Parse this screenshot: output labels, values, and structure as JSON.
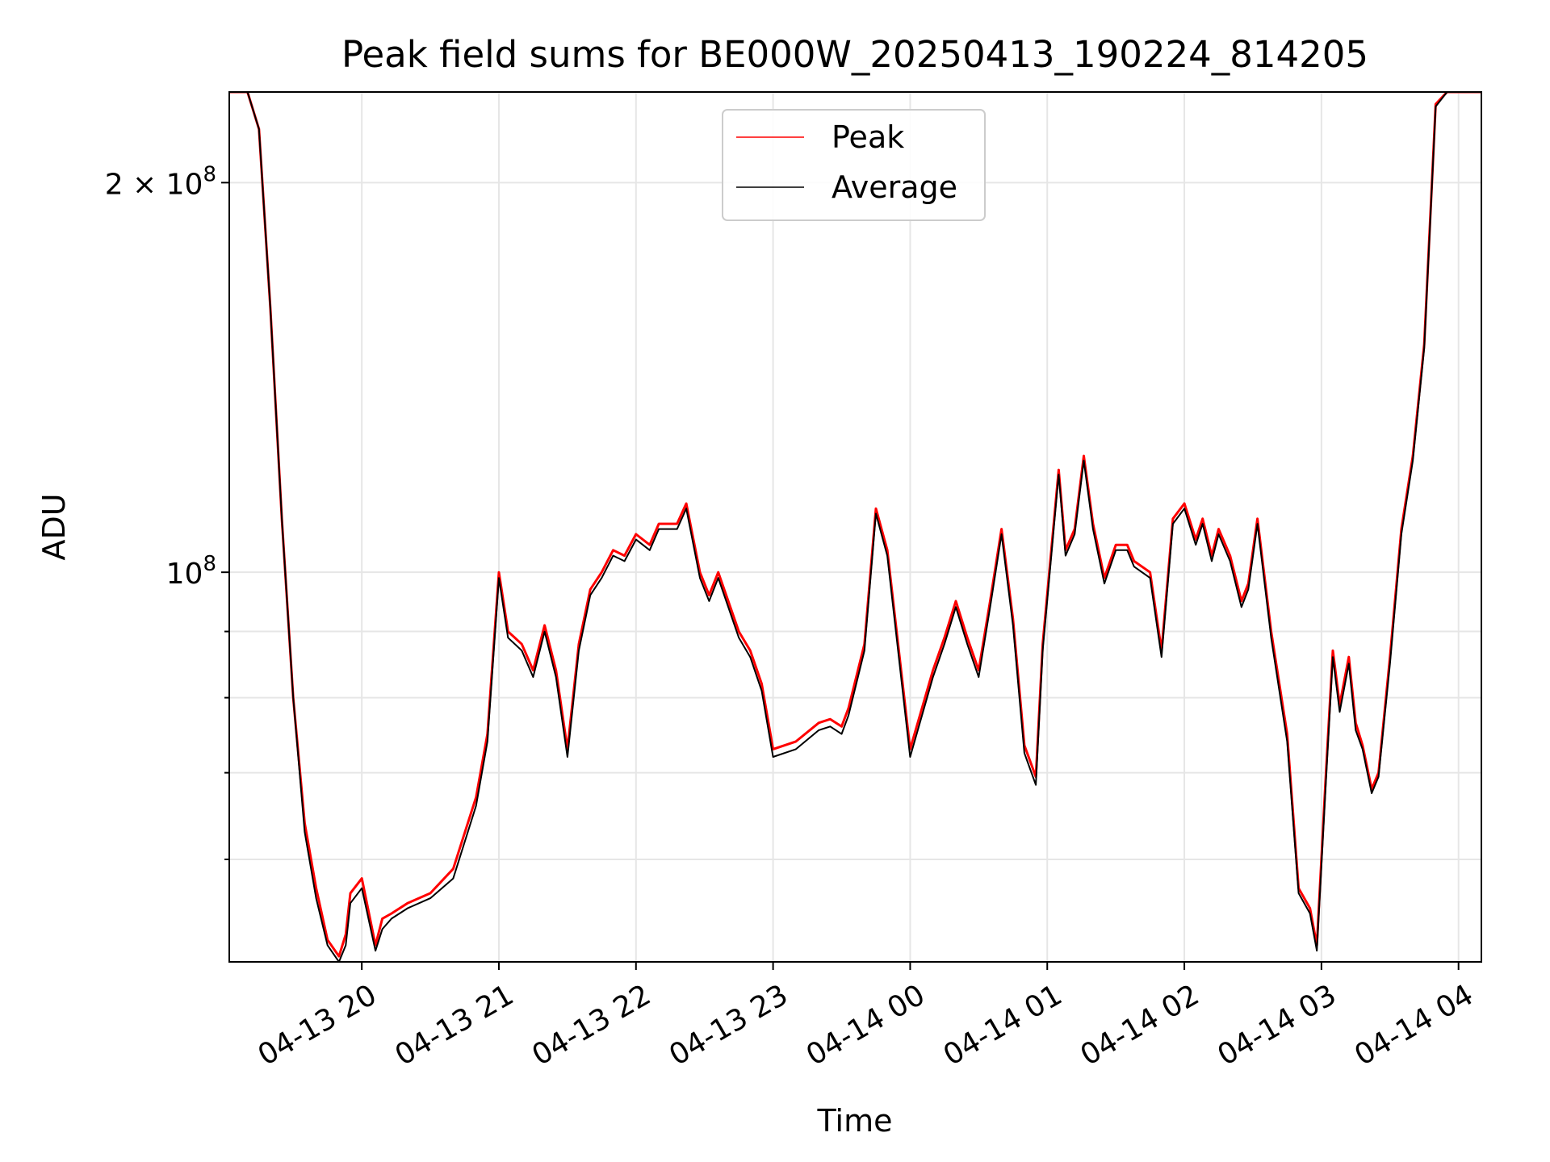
{
  "chart_data": {
    "type": "line",
    "title": "Peak field sums for BE000W_20250413_190224_814205",
    "xlabel": "Time",
    "ylabel": "ADU",
    "yscale": "log",
    "ylim": [
      50000000,
      235000000
    ],
    "xlim": [
      "04-13 19:02",
      "04-14 04:10"
    ],
    "grid": true,
    "legend_position": "upper center",
    "x_ticks": [
      {
        "at": "04-13 20:00",
        "label": "04-13 20"
      },
      {
        "at": "04-13 21:00",
        "label": "04-13 21"
      },
      {
        "at": "04-13 22:00",
        "label": "04-13 22"
      },
      {
        "at": "04-13 23:00",
        "label": "04-13 23"
      },
      {
        "at": "04-14 00:00",
        "label": "04-14 00"
      },
      {
        "at": "04-14 01:00",
        "label": "04-14 01"
      },
      {
        "at": "04-14 02:00",
        "label": "04-14 02"
      },
      {
        "at": "04-14 03:00",
        "label": "04-14 03"
      },
      {
        "at": "04-14 04:00",
        "label": "04-14 04"
      }
    ],
    "y_ticks": [
      {
        "value": 200000000,
        "label": "2 × 10",
        "exp": "8"
      },
      {
        "value": 100000000,
        "label": "10",
        "exp": "8"
      }
    ],
    "y_minor_ticks": [
      60000000,
      70000000,
      80000000,
      90000000
    ],
    "series": [
      {
        "name": "Peak",
        "color": "#ff0000",
        "x": [
          "04-13 19:02",
          "04-13 19:10",
          "04-13 19:15",
          "04-13 19:20",
          "04-13 19:25",
          "04-13 19:30",
          "04-13 19:35",
          "04-13 19:40",
          "04-13 19:45",
          "04-13 19:50",
          "04-13 19:53",
          "04-13 19:55",
          "04-13 20:00",
          "04-13 20:06",
          "04-13 20:09",
          "04-13 20:13",
          "04-13 20:20",
          "04-13 20:30",
          "04-13 20:40",
          "04-13 20:50",
          "04-13 20:55",
          "04-13 21:00",
          "04-13 21:04",
          "04-13 21:10",
          "04-13 21:15",
          "04-13 21:20",
          "04-13 21:25",
          "04-13 21:30",
          "04-13 21:35",
          "04-13 21:40",
          "04-13 21:45",
          "04-13 21:50",
          "04-13 21:55",
          "04-13 22:00",
          "04-13 22:06",
          "04-13 22:10",
          "04-13 22:18",
          "04-13 22:22",
          "04-13 22:28",
          "04-13 22:32",
          "04-13 22:36",
          "04-13 22:45",
          "04-13 22:50",
          "04-13 22:55",
          "04-13 23:00",
          "04-13 23:10",
          "04-13 23:20",
          "04-13 23:25",
          "04-13 23:30",
          "04-13 23:33",
          "04-13 23:40",
          "04-13 23:45",
          "04-13 23:50",
          "04-14 00:00",
          "04-14 00:10",
          "04-14 00:15",
          "04-14 00:20",
          "04-14 00:25",
          "04-14 00:30",
          "04-14 00:35",
          "04-14 00:40",
          "04-14 00:45",
          "04-14 00:50",
          "04-14 00:55",
          "04-14 00:58",
          "04-14 01:05",
          "04-14 01:08",
          "04-14 01:12",
          "04-14 01:16",
          "04-14 01:20",
          "04-14 01:25",
          "04-14 01:30",
          "04-14 01:35",
          "04-14 01:38",
          "04-14 01:45",
          "04-14 01:50",
          "04-14 01:55",
          "04-14 02:00",
          "04-14 02:05",
          "04-14 02:08",
          "04-14 02:12",
          "04-14 02:15",
          "04-14 02:20",
          "04-14 02:25",
          "04-14 02:28",
          "04-14 02:32",
          "04-14 02:38",
          "04-14 02:45",
          "04-14 02:50",
          "04-14 02:55",
          "04-14 02:58",
          "04-14 03:02",
          "04-14 03:05",
          "04-14 03:08",
          "04-14 03:12",
          "04-14 03:15",
          "04-14 03:18",
          "04-14 03:22",
          "04-14 03:25",
          "04-14 03:30",
          "04-14 03:35",
          "04-14 03:40",
          "04-14 03:45",
          "04-14 03:50",
          "04-14 03:55",
          "04-14 03:58",
          "04-14 04:00",
          "04-14 04:10"
        ],
        "values": [
          235000000,
          235000000,
          220000000,
          160000000,
          110000000,
          80000000,
          64000000,
          57000000,
          52000000,
          50500000,
          52500000,
          56500000,
          58000000,
          51500000,
          54000000,
          54500000,
          55500000,
          56500000,
          59000000,
          67000000,
          75000000,
          100000000,
          90000000,
          88000000,
          84000000,
          91000000,
          84000000,
          73000000,
          88000000,
          97000000,
          100000000,
          104000000,
          103000000,
          107000000,
          105000000,
          109000000,
          109000000,
          113000000,
          100000000,
          96000000,
          100000000,
          90000000,
          87000000,
          82000000,
          73000000,
          74000000,
          76500000,
          77000000,
          76000000,
          78500000,
          88000000,
          112000000,
          104000000,
          73000000,
          84000000,
          89000000,
          95000000,
          89000000,
          84000000,
          95000000,
          108000000,
          92000000,
          73500000,
          69500000,
          88000000,
          120000000,
          104000000,
          108000000,
          123000000,
          109000000,
          99000000,
          105000000,
          105000000,
          102000000,
          100000000,
          87000000,
          110000000,
          113000000,
          106000000,
          110000000,
          103000000,
          108000000,
          103000000,
          95000000,
          98000000,
          110000000,
          90000000,
          75000000,
          57000000,
          55000000,
          51500000,
          70000000,
          87000000,
          79000000,
          86000000,
          76500000,
          73500000,
          68000000,
          70000000,
          86000000,
          108000000,
          123000000,
          150000000,
          230000000,
          235000000,
          235000000,
          235000000,
          235000000
        ]
      },
      {
        "name": "Average",
        "color": "#000000",
        "x": [
          "04-13 19:02",
          "04-13 19:10",
          "04-13 19:15",
          "04-13 19:20",
          "04-13 19:25",
          "04-13 19:30",
          "04-13 19:35",
          "04-13 19:40",
          "04-13 19:45",
          "04-13 19:50",
          "04-13 19:53",
          "04-13 19:55",
          "04-13 20:00",
          "04-13 20:06",
          "04-13 20:09",
          "04-13 20:13",
          "04-13 20:20",
          "04-13 20:30",
          "04-13 20:40",
          "04-13 20:50",
          "04-13 20:55",
          "04-13 21:00",
          "04-13 21:04",
          "04-13 21:10",
          "04-13 21:15",
          "04-13 21:20",
          "04-13 21:25",
          "04-13 21:30",
          "04-13 21:35",
          "04-13 21:40",
          "04-13 21:45",
          "04-13 21:50",
          "04-13 21:55",
          "04-13 22:00",
          "04-13 22:06",
          "04-13 22:10",
          "04-13 22:18",
          "04-13 22:22",
          "04-13 22:28",
          "04-13 22:32",
          "04-13 22:36",
          "04-13 22:45",
          "04-13 22:50",
          "04-13 22:55",
          "04-13 23:00",
          "04-13 23:10",
          "04-13 23:20",
          "04-13 23:25",
          "04-13 23:30",
          "04-13 23:33",
          "04-13 23:40",
          "04-13 23:45",
          "04-13 23:50",
          "04-14 00:00",
          "04-14 00:10",
          "04-14 00:15",
          "04-14 00:20",
          "04-14 00:25",
          "04-14 00:30",
          "04-14 00:35",
          "04-14 00:40",
          "04-14 00:45",
          "04-14 00:50",
          "04-14 00:55",
          "04-14 00:58",
          "04-14 01:05",
          "04-14 01:08",
          "04-14 01:12",
          "04-14 01:16",
          "04-14 01:20",
          "04-14 01:25",
          "04-14 01:30",
          "04-14 01:35",
          "04-14 01:38",
          "04-14 01:45",
          "04-14 01:50",
          "04-14 01:55",
          "04-14 02:00",
          "04-14 02:05",
          "04-14 02:08",
          "04-14 02:12",
          "04-14 02:15",
          "04-14 02:20",
          "04-14 02:25",
          "04-14 02:28",
          "04-14 02:32",
          "04-14 02:38",
          "04-14 02:45",
          "04-14 02:50",
          "04-14 02:55",
          "04-14 02:58",
          "04-14 03:02",
          "04-14 03:05",
          "04-14 03:08",
          "04-14 03:12",
          "04-14 03:15",
          "04-14 03:18",
          "04-14 03:22",
          "04-14 03:25",
          "04-14 03:30",
          "04-14 03:35",
          "04-14 03:40",
          "04-14 03:45",
          "04-14 03:50",
          "04-14 03:55",
          "04-14 03:58",
          "04-14 04:00",
          "04-14 04:10"
        ],
        "values": [
          235000000,
          235000000,
          220000000,
          160000000,
          110000000,
          80000000,
          63000000,
          56000000,
          51500000,
          50000000,
          51500000,
          55500000,
          57000000,
          51000000,
          53000000,
          54000000,
          55000000,
          56000000,
          58000000,
          66000000,
          74000000,
          99000000,
          89000000,
          87000000,
          83000000,
          90000000,
          83000000,
          72000000,
          87000000,
          96000000,
          99000000,
          103000000,
          102000000,
          106000000,
          104000000,
          108000000,
          108000000,
          112000000,
          99000000,
          95000000,
          99000000,
          89000000,
          86000000,
          81000000,
          72000000,
          73000000,
          75500000,
          76000000,
          75000000,
          77500000,
          87000000,
          111000000,
          103000000,
          72000000,
          83000000,
          88000000,
          94000000,
          88000000,
          83000000,
          94000000,
          107000000,
          91000000,
          72500000,
          68500000,
          87000000,
          119000000,
          103000000,
          107000000,
          122000000,
          108000000,
          98000000,
          104000000,
          104000000,
          101000000,
          99000000,
          86000000,
          109000000,
          112000000,
          105000000,
          109000000,
          102000000,
          107000000,
          102000000,
          94000000,
          97000000,
          109000000,
          89000000,
          74000000,
          56500000,
          54500000,
          51000000,
          69000000,
          86000000,
          78000000,
          85000000,
          75500000,
          73000000,
          67500000,
          69500000,
          85000000,
          107000000,
          122000000,
          149000000,
          229000000,
          235000000,
          235000000,
          235000000,
          235000000
        ]
      }
    ]
  }
}
